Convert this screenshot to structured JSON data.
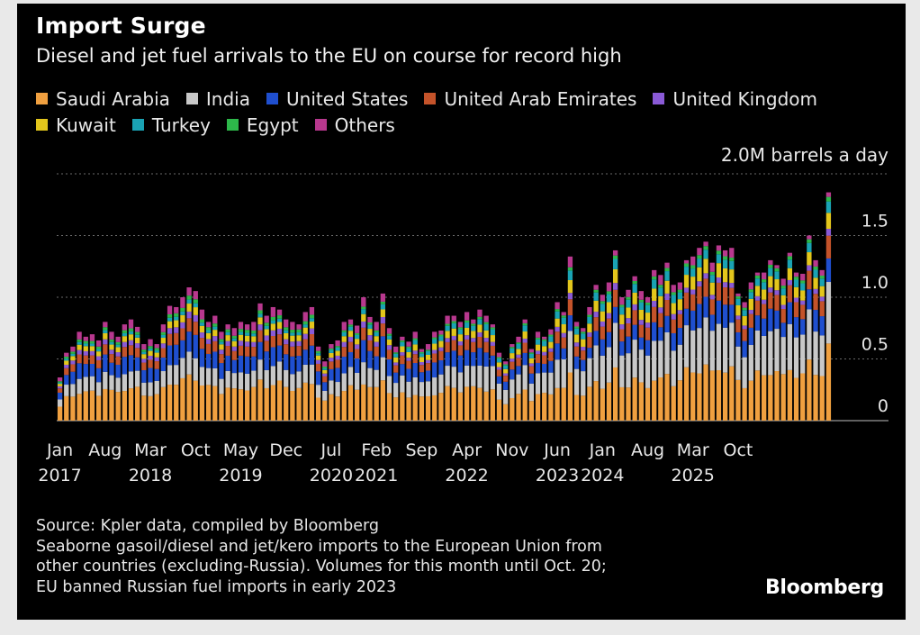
{
  "header": {
    "title": "Import Surge",
    "subtitle": "Diesel and jet fuel arrivals to the EU on course for record high"
  },
  "footer": {
    "source": "Source: Kpler data, compiled by Bloomberg",
    "note_1": "Seaborne gasoil/diesel and jet/kero imports to the European Union from",
    "note_2": "other countries (excluding-Russia). Volumes for this month until Oct. 20;",
    "note_3": "EU banned Russian fuel imports in early 2023",
    "brand": "Bloomberg"
  },
  "chart_data": {
    "type": "bar",
    "stacked": true,
    "unit_label": "2.0M barrels a day",
    "ylim": [
      0,
      2.0
    ],
    "yticks": [
      {
        "value": 0,
        "label": "0"
      },
      {
        "value": 0.5,
        "label": "0.5"
      },
      {
        "value": 1.0,
        "label": "1.0"
      },
      {
        "value": 1.5,
        "label": "1.5"
      },
      {
        "value": 2.0,
        "label": "2.0M barrels a day"
      }
    ],
    "xticks": [
      {
        "index": 0,
        "line1": "Jan",
        "line2": "2017"
      },
      {
        "index": 7,
        "line1": "Aug",
        "line2": ""
      },
      {
        "index": 14,
        "line1": "Mar",
        "line2": "2018"
      },
      {
        "index": 21,
        "line1": "Oct",
        "line2": ""
      },
      {
        "index": 28,
        "line1": "May",
        "line2": "2019"
      },
      {
        "index": 35,
        "line1": "Dec",
        "line2": ""
      },
      {
        "index": 42,
        "line1": "Jul",
        "line2": "2020"
      },
      {
        "index": 49,
        "line1": "Feb",
        "line2": "2021"
      },
      {
        "index": 56,
        "line1": "Sep",
        "line2": ""
      },
      {
        "index": 63,
        "line1": "Apr",
        "line2": "2022"
      },
      {
        "index": 70,
        "line1": "Nov",
        "line2": ""
      },
      {
        "index": 77,
        "line1": "Jun",
        "line2": "2023"
      },
      {
        "index": 84,
        "line1": "Jan",
        "line2": "2024"
      },
      {
        "index": 91,
        "line1": "Aug",
        "line2": ""
      },
      {
        "index": 98,
        "line1": "Mar",
        "line2": "2025"
      },
      {
        "index": 105,
        "line1": "Oct",
        "line2": ""
      }
    ],
    "series": [
      {
        "name": "Saudi Arabia",
        "color": "#f0a040"
      },
      {
        "name": "India",
        "color": "#c8c8c8"
      },
      {
        "name": "United States",
        "color": "#1f4fcf"
      },
      {
        "name": "United Arab Emirates",
        "color": "#c4532a"
      },
      {
        "name": "United Kingdom",
        "color": "#8a5ad6"
      },
      {
        "name": "Kuwait",
        "color": "#e3c61c"
      },
      {
        "name": "Turkey",
        "color": "#1aa3b4"
      },
      {
        "name": "Egypt",
        "color": "#2db84a"
      },
      {
        "name": "Others",
        "color": "#b8388e"
      }
    ],
    "legend_rows": [
      [
        0,
        1,
        2,
        3,
        4
      ],
      [
        5,
        6,
        7,
        8
      ]
    ],
    "totals": [
      0.35,
      0.55,
      0.6,
      0.72,
      0.68,
      0.7,
      0.65,
      0.8,
      0.72,
      0.68,
      0.78,
      0.82,
      0.76,
      0.62,
      0.66,
      0.62,
      0.78,
      0.93,
      0.92,
      1.0,
      1.08,
      1.05,
      0.9,
      0.8,
      0.85,
      0.72,
      0.78,
      0.75,
      0.8,
      0.78,
      0.8,
      0.95,
      0.85,
      0.92,
      0.9,
      0.82,
      0.8,
      0.78,
      0.88,
      0.92,
      0.6,
      0.48,
      0.62,
      0.65,
      0.8,
      0.82,
      0.77,
      1.0,
      0.84,
      0.8,
      1.03,
      0.75,
      0.6,
      0.68,
      0.64,
      0.72,
      0.58,
      0.62,
      0.72,
      0.73,
      0.85,
      0.85,
      0.8,
      0.88,
      0.82,
      0.9,
      0.85,
      0.78,
      0.55,
      0.48,
      0.62,
      0.68,
      0.82,
      0.58,
      0.72,
      0.68,
      0.74,
      0.96,
      0.88,
      1.33,
      0.8,
      0.75,
      0.92,
      1.1,
      1.02,
      1.12,
      1.38,
      1.0,
      1.06,
      1.17,
      1.05,
      1.0,
      1.22,
      1.18,
      1.28,
      1.1,
      1.12,
      1.3,
      1.33,
      1.4,
      1.45,
      1.28,
      1.42,
      1.38,
      1.4,
      1.03,
      0.96,
      1.12,
      1.2,
      1.2,
      1.3,
      1.26,
      1.15,
      1.36,
      1.2,
      1.19,
      1.5,
      1.3,
      1.22,
      1.85
    ],
    "shares": [
      [
        0.33,
        0.17,
        0.16,
        0.1,
        0.05,
        0.06,
        0.03,
        0.03,
        0.07
      ],
      [
        0.33,
        0.17,
        0.16,
        0.1,
        0.05,
        0.06,
        0.03,
        0.03,
        0.07
      ],
      [
        0.32,
        0.18,
        0.16,
        0.1,
        0.05,
        0.06,
        0.04,
        0.02,
        0.07
      ],
      [
        0.31,
        0.2,
        0.15,
        0.1,
        0.04,
        0.07,
        0.05,
        0.02,
        0.06
      ],
      [
        0.3,
        0.24,
        0.12,
        0.1,
        0.04,
        0.07,
        0.06,
        0.02,
        0.05
      ],
      [
        0.28,
        0.26,
        0.11,
        0.1,
        0.04,
        0.08,
        0.06,
        0.02,
        0.05
      ],
      [
        0.3,
        0.26,
        0.12,
        0.1,
        0.03,
        0.08,
        0.05,
        0.02,
        0.04
      ],
      [
        0.31,
        0.27,
        0.12,
        0.1,
        0.03,
        0.07,
        0.05,
        0.02,
        0.03
      ]
    ],
    "share_breaks": [
      0,
      30,
      42,
      52,
      66,
      78,
      96,
      108
    ]
  }
}
